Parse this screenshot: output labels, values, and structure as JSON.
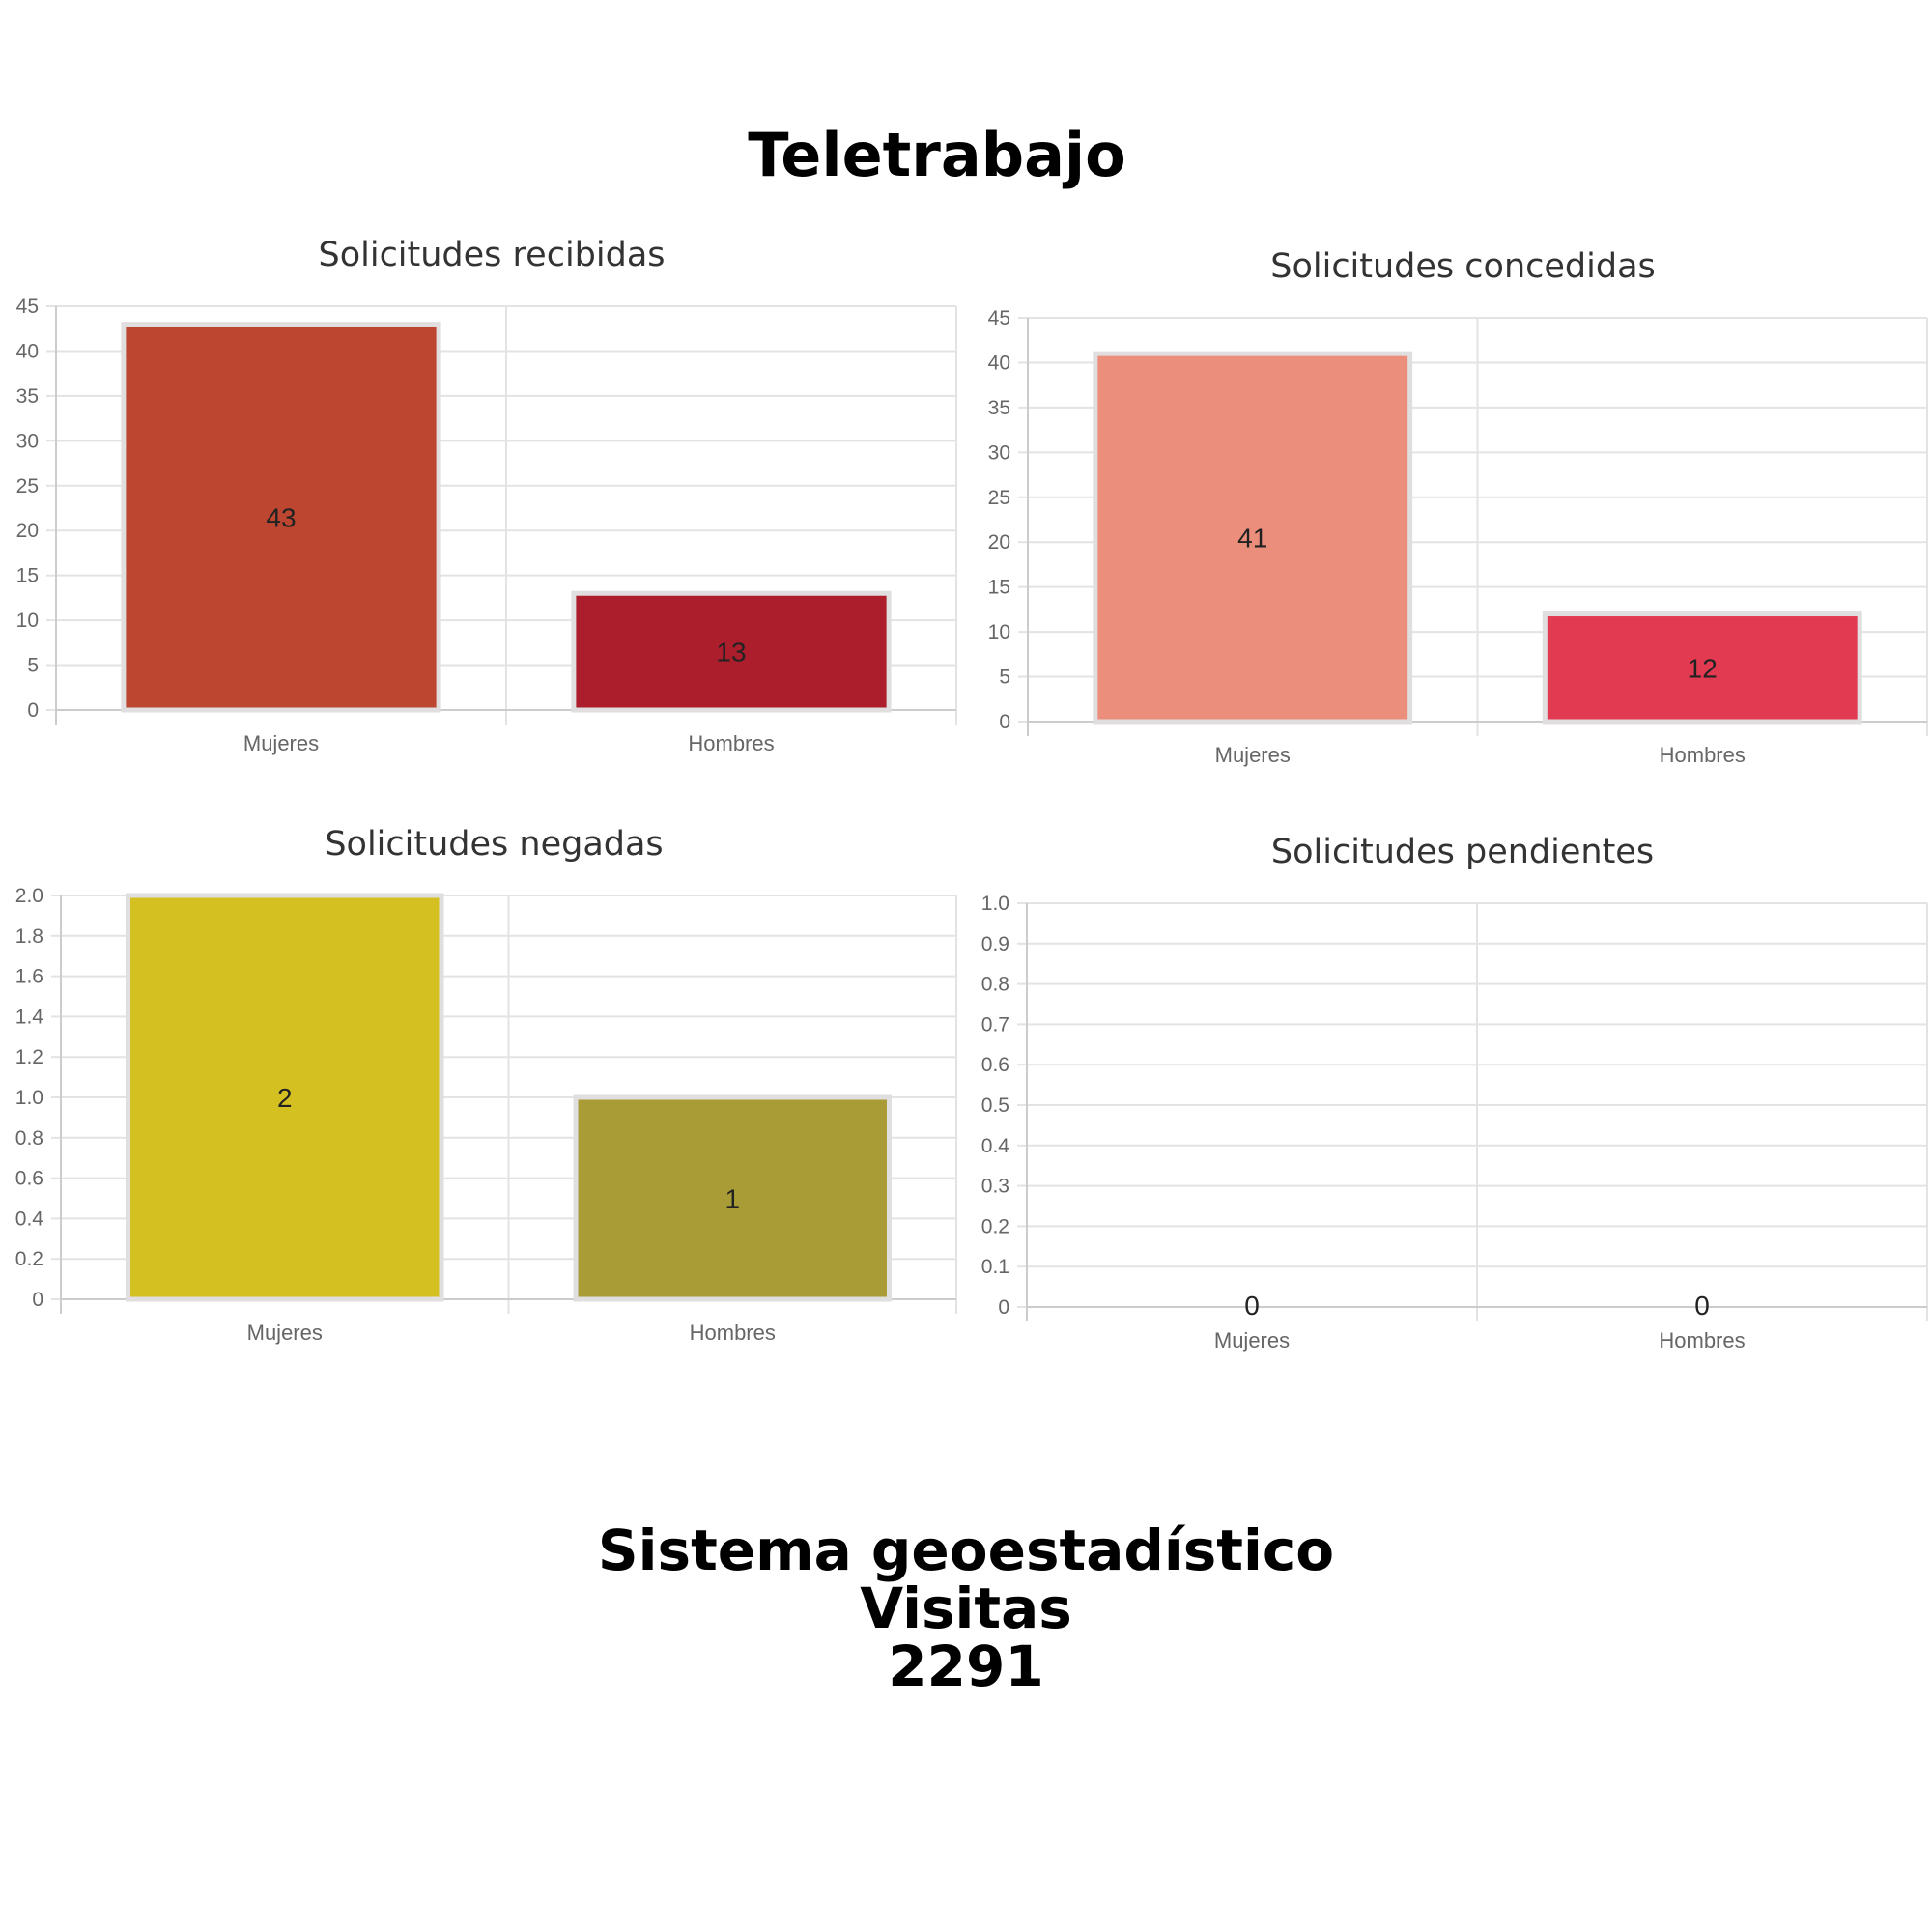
{
  "page": {
    "title": "Teletrabajo",
    "footer": {
      "line1": "Sistema geoestadístico",
      "line2": "Visitas",
      "visits": "2291"
    }
  },
  "chart_data": [
    {
      "type": "bar",
      "title": "Solicitudes recibidas",
      "categories": [
        "Mujeres",
        "Hombres"
      ],
      "values": [
        43,
        13
      ],
      "value_labels": [
        "43",
        "13"
      ],
      "colors": [
        "#bc4630",
        "#ad1e2c"
      ],
      "ylim": [
        0,
        45
      ],
      "yticks": [
        "0",
        "5",
        "10",
        "15",
        "20",
        "25",
        "30",
        "35",
        "40",
        "45"
      ],
      "grid": true,
      "legend": "none"
    },
    {
      "type": "bar",
      "title": "Solicitudes concedidas",
      "categories": [
        "Mujeres",
        "Hombres"
      ],
      "values": [
        41,
        12
      ],
      "value_labels": [
        "41",
        "12"
      ],
      "colors": [
        "#ec8e7c",
        "#e23a51"
      ],
      "ylim": [
        0,
        45
      ],
      "yticks": [
        "0",
        "5",
        "10",
        "15",
        "20",
        "25",
        "30",
        "35",
        "40",
        "45"
      ],
      "grid": true,
      "legend": "none"
    },
    {
      "type": "bar",
      "title": "Solicitudes negadas",
      "categories": [
        "Mujeres",
        "Hombres"
      ],
      "values": [
        2,
        1
      ],
      "value_labels": [
        "2",
        "1"
      ],
      "colors": [
        "#d4c121",
        "#a99c37"
      ],
      "ylim": [
        0,
        2
      ],
      "yticks": [
        "0",
        "0.2",
        "0.4",
        "0.6",
        "0.8",
        "1.0",
        "1.2",
        "1.4",
        "1.6",
        "1.8",
        "2.0"
      ],
      "grid": true,
      "legend": "none"
    },
    {
      "type": "bar",
      "title": "Solicitudes pendientes",
      "categories": [
        "Mujeres",
        "Hombres"
      ],
      "values": [
        0,
        0
      ],
      "value_labels": [
        "0",
        "0"
      ],
      "colors": [
        "#cccccc",
        "#cccccc"
      ],
      "ylim": [
        0,
        1
      ],
      "yticks": [
        "0",
        "0.1",
        "0.2",
        "0.3",
        "0.4",
        "0.5",
        "0.6",
        "0.7",
        "0.8",
        "0.9",
        "1.0"
      ],
      "grid": true,
      "legend": "none"
    }
  ]
}
